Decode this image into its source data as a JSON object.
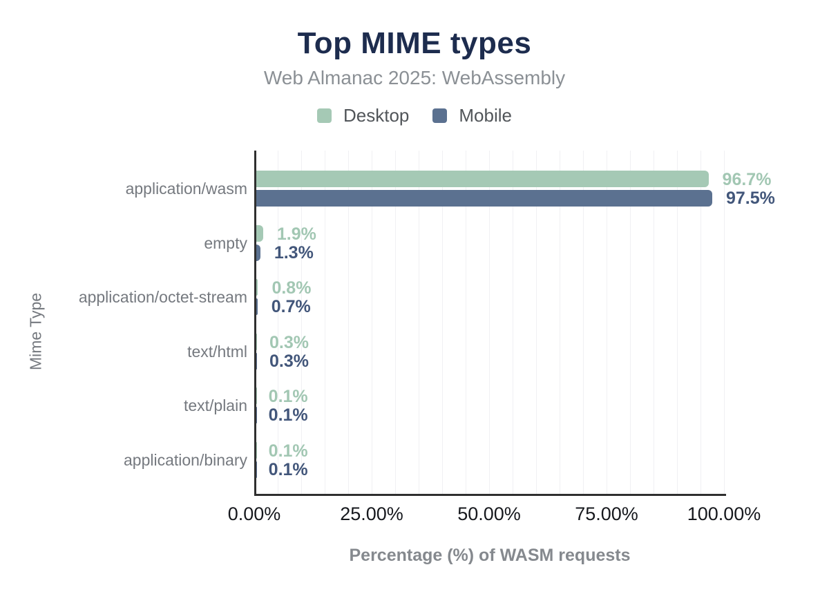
{
  "header": {
    "title": "Top MIME types",
    "subtitle": "Web Almanac 2025: WebAssembly",
    "title_color": "#1d2c4e"
  },
  "legend": [
    {
      "label": "Desktop",
      "color": "#a5c9b5"
    },
    {
      "label": "Mobile",
      "color": "#5b7190"
    }
  ],
  "chart_data": {
    "type": "bar",
    "orientation": "horizontal",
    "title": "Top MIME types",
    "subtitle": "Web Almanac 2025: WebAssembly",
    "categories": [
      "application/wasm",
      "empty",
      "application/octet-stream",
      "text/html",
      "text/plain",
      "application/binary"
    ],
    "series": [
      {
        "name": "Desktop",
        "color": "#a5c9b5",
        "label_color": "#a2c7b3",
        "values": [
          96.7,
          1.9,
          0.8,
          0.3,
          0.1,
          0.1
        ],
        "labels": [
          "96.7%",
          "1.9%",
          "0.8%",
          "0.3%",
          "0.1%",
          "0.1%"
        ]
      },
      {
        "name": "Mobile",
        "color": "#5b7190",
        "label_color": "#42567a",
        "values": [
          97.5,
          1.3,
          0.7,
          0.3,
          0.1,
          0.1
        ],
        "labels": [
          "97.5%",
          "1.3%",
          "0.7%",
          "0.3%",
          "0.1%",
          "0.1%"
        ]
      }
    ],
    "xlabel": "Percentage (%) of WASM requests",
    "ylabel": "Mime Type",
    "xlim": [
      0,
      100
    ],
    "x_ticks": [
      "0.00%",
      "25.00%",
      "50.00%",
      "75.00%",
      "100.00%"
    ],
    "x_tick_values": [
      0,
      25,
      50,
      75,
      100
    ],
    "grid": {
      "axis": "x",
      "minor_step_pct": 5,
      "color": "#f0f0f3"
    },
    "legend_position": "top",
    "value_labels_shown": true
  }
}
